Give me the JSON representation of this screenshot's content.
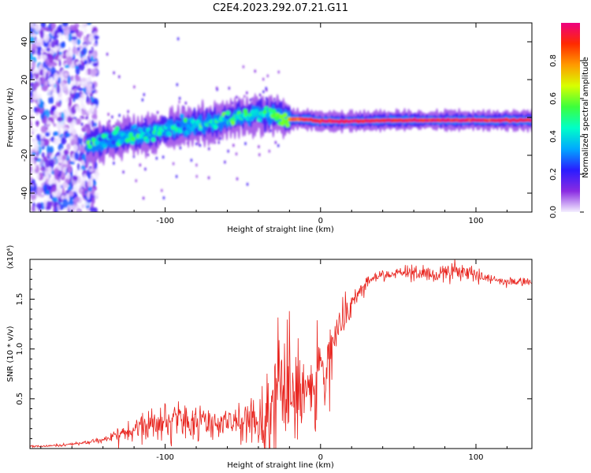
{
  "figure_title": "C2E4.2023.292.07.21.G11",
  "chart_data": [
    {
      "type": "heatmap",
      "title": "C2E4.2023.292.07.21.G11",
      "xlabel": "Height of straight line (km)",
      "ylabel": "Frequency (Hz)",
      "xlim": [
        -187,
        136
      ],
      "ylim": [
        -50,
        50
      ],
      "x_ticks": [
        -100,
        0,
        100
      ],
      "y_ticks": [
        -40,
        -20,
        0,
        20,
        40
      ],
      "colorbar": {
        "label": "Normalized spectral amplitude",
        "range": [
          0.0,
          1.0
        ],
        "ticks": [
          "0.0",
          "0.2",
          "0.4",
          "0.6",
          "0.8"
        ],
        "colors": [
          "#f4efff",
          "#8a2be2",
          "#2a1cff",
          "#00a8ff",
          "#00ffc8",
          "#3cff3c",
          "#d8ff00",
          "#ff9a00",
          "#ff2a00",
          "#ee0080"
        ]
      },
      "noise_region_x": [
        -187,
        -144
      ],
      "track": {
        "x": [
          -150,
          -130,
          -110,
          -90,
          -70,
          -55,
          -40,
          -30,
          -20,
          -10,
          0,
          20,
          50,
          80,
          110,
          136
        ],
        "freq_hz": [
          -14,
          -11,
          -8,
          -5,
          -3,
          0,
          2,
          1,
          -1,
          -1,
          -2,
          -2,
          -1.5,
          -1.5,
          -1.5,
          -1.5
        ],
        "amplitude": [
          0.35,
          0.38,
          0.4,
          0.42,
          0.42,
          0.44,
          0.4,
          0.55,
          0.8,
          0.9,
          0.95,
          0.95,
          0.95,
          0.95,
          0.95,
          0.95
        ]
      }
    },
    {
      "type": "line",
      "xlabel": "Height of straight line (km)",
      "ylabel": "SNR (10 * v/v)",
      "y_multiplier": "(x10⁴)",
      "xlim": [
        -187,
        136
      ],
      "ylim": [
        0,
        19000
      ],
      "x_ticks": [
        -100,
        0,
        100
      ],
      "y_ticks": [
        5000,
        10000,
        15000
      ],
      "y_tick_labels": [
        "0.5",
        "1.0",
        "1.5"
      ],
      "color": "#e8221c",
      "series": [
        {
          "x": [
            -187,
            -170,
            -150,
            -140,
            -130,
            -120,
            -110,
            -100,
            -90,
            -80,
            -70,
            -60,
            -50,
            -40,
            -35,
            -30,
            -25,
            -20,
            -15,
            -10,
            -5,
            0,
            5,
            10,
            15,
            20,
            25,
            30,
            40,
            50,
            60,
            70,
            80,
            90,
            100,
            110,
            120,
            136
          ],
          "values": [
            200,
            300,
            600,
            900,
            1300,
            1800,
            2200,
            2600,
            3000,
            2800,
            2600,
            2400,
            2700,
            3000,
            3400,
            4500,
            7000,
            6500,
            6000,
            6200,
            6500,
            7000,
            9000,
            11000,
            13000,
            14500,
            15800,
            16800,
            17400,
            17700,
            17600,
            17500,
            17600,
            17700,
            17400,
            17000,
            16800,
            16700
          ],
          "noise_amplitude": [
            80,
            100,
            150,
            250,
            600,
            1000,
            1400,
            1600,
            1800,
            1500,
            1300,
            1200,
            1600,
            2200,
            5000,
            7000,
            6000,
            5000,
            4500,
            4500,
            4000,
            3500,
            3000,
            2500,
            1800,
            1200,
            800,
            600,
            500,
            500,
            600,
            700,
            900,
            800,
            600,
            400,
            400,
            400
          ]
        }
      ]
    }
  ]
}
